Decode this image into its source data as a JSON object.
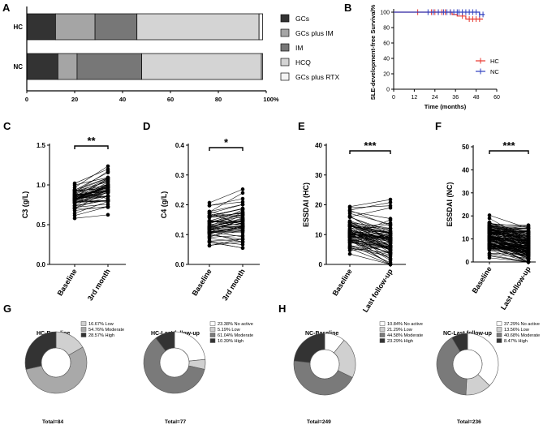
{
  "panels": {
    "A": "A",
    "B": "B",
    "C": "C",
    "D": "D",
    "E": "E",
    "F": "F",
    "G": "G",
    "H": "H"
  },
  "chart_data": [
    {
      "id": "A",
      "type": "bar",
      "orientation": "horizontal",
      "stacked": true,
      "categories": [
        "HC",
        "NC"
      ],
      "series": [
        {
          "name": "GCs",
          "values": [
            12,
            13
          ],
          "color": "#333333"
        },
        {
          "name": "GCs plus IM",
          "values": [
            16.5,
            8
          ],
          "color": "#a5a5a5"
        },
        {
          "name": "IM",
          "values": [
            17.5,
            27
          ],
          "color": "#777777"
        },
        {
          "name": "HCQ",
          "values": [
            51,
            50
          ],
          "color": "#d4d4d4"
        },
        {
          "name": "GCs plus RTX",
          "values": [
            1.5,
            0.5
          ],
          "color": "#f4f4f4"
        }
      ],
      "x_ticks": [
        "0",
        "20",
        "40",
        "60",
        "80",
        "100%"
      ],
      "xlim": [
        0,
        100
      ]
    },
    {
      "id": "B",
      "type": "line",
      "ylabel": "SLE-development-free Survival%",
      "xlabel": "Time (months)",
      "y_ticks": [
        "0",
        "20",
        "40",
        "60",
        "80",
        "100"
      ],
      "x_ticks": [
        "0",
        "12",
        "24",
        "36",
        "48",
        "60"
      ],
      "ylim": [
        0,
        100
      ],
      "xlim": [
        0,
        60
      ],
      "series": [
        {
          "name": "HC",
          "color": "#e8362d",
          "x": [
            0,
            34,
            34,
            37,
            37,
            42,
            42,
            52
          ],
          "y": [
            100,
            100,
            97,
            97,
            95,
            95,
            91,
            91
          ],
          "censored": [
            14,
            22,
            24,
            26,
            28,
            30,
            33,
            40,
            44,
            46,
            48,
            50
          ]
        },
        {
          "name": "NC",
          "color": "#2f3fbf",
          "x": [
            0,
            50,
            50,
            53
          ],
          "y": [
            100,
            100,
            97,
            97
          ],
          "censored": [
            20,
            23,
            26,
            29,
            31,
            33,
            35,
            37,
            38,
            40,
            42,
            44,
            46,
            48,
            50,
            52
          ]
        }
      ]
    },
    {
      "id": "C",
      "type": "scatter",
      "paired": true,
      "ylabel": "C3 (g/L)",
      "categories": [
        "Baseline",
        "3rd month"
      ],
      "y_ticks": [
        "0.0",
        "0.5",
        "1.0",
        "1.5"
      ],
      "ylim": [
        0,
        1.5
      ],
      "significance": "**"
    },
    {
      "id": "D",
      "type": "scatter",
      "paired": true,
      "ylabel": "C4 (g/L)",
      "categories": [
        "Baseline",
        "3rd month"
      ],
      "y_ticks": [
        "0.0",
        "0.1",
        "0.2",
        "0.3",
        "0.4"
      ],
      "ylim": [
        0,
        0.4
      ],
      "significance": "*"
    },
    {
      "id": "E",
      "type": "scatter",
      "paired": true,
      "ylabel": "ESSDAI (HC)",
      "categories": [
        "Baseline",
        "Last follow-up"
      ],
      "y_ticks": [
        "0",
        "10",
        "20",
        "30",
        "40"
      ],
      "ylim": [
        0,
        40
      ],
      "significance": "***"
    },
    {
      "id": "F",
      "type": "scatter",
      "paired": true,
      "ylabel": "ESSDAI (NC)",
      "categories": [
        "Baseline",
        "Last follow-up"
      ],
      "y_ticks": [
        "0",
        "10",
        "20",
        "30",
        "40",
        "50"
      ],
      "ylim": [
        0,
        50
      ],
      "significance": "***"
    },
    {
      "id": "G1",
      "type": "pie",
      "donut": true,
      "title": "HC-Baseline",
      "total": "Total=84",
      "slices": [
        {
          "label": "16.67%  Low",
          "value": 16.67,
          "color": "#d0d0d0"
        },
        {
          "label": "54.76%  Moderate",
          "value": 54.76,
          "color": "#a9a9a9"
        },
        {
          "label": "28.57%  High",
          "value": 28.57,
          "color": "#333333"
        }
      ]
    },
    {
      "id": "G2",
      "type": "pie",
      "donut": true,
      "title": "HC-Last follow-up",
      "total": "Total=77",
      "slices": [
        {
          "label": "23.38%  No active",
          "value": 23.38,
          "color": "#ffffff"
        },
        {
          "label": "5.19%  Low",
          "value": 5.19,
          "color": "#d0d0d0"
        },
        {
          "label": "61.04%  Moderate",
          "value": 61.04,
          "color": "#7a7a7a"
        },
        {
          "label": "10.39%  High",
          "value": 10.39,
          "color": "#333333"
        }
      ]
    },
    {
      "id": "H1",
      "type": "pie",
      "donut": true,
      "title": "NC-Baseline",
      "total": "Total=249",
      "slices": [
        {
          "label": "10.84%  No active",
          "value": 10.84,
          "color": "#ffffff"
        },
        {
          "label": "21.29%  Low",
          "value": 21.29,
          "color": "#d0d0d0"
        },
        {
          "label": "44.58%  Moderate",
          "value": 44.58,
          "color": "#7a7a7a"
        },
        {
          "label": "23.29%  High",
          "value": 23.29,
          "color": "#333333"
        }
      ]
    },
    {
      "id": "H2",
      "type": "pie",
      "donut": true,
      "title": "NC-Last follow-up",
      "total": "Total=236",
      "slices": [
        {
          "label": "37.29%  No active",
          "value": 37.29,
          "color": "#ffffff"
        },
        {
          "label": "13.56%  Low",
          "value": 13.56,
          "color": "#d0d0d0"
        },
        {
          "label": "40.68%  Moderate",
          "value": 40.68,
          "color": "#7a7a7a"
        },
        {
          "label": "8.47%  High",
          "value": 8.47,
          "color": "#333333"
        }
      ]
    }
  ]
}
